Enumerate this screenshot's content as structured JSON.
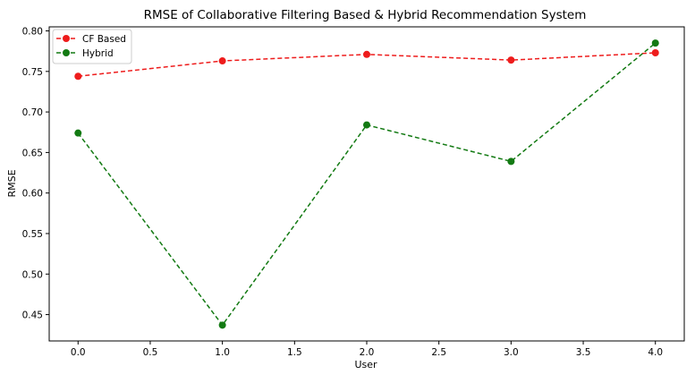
{
  "chart_data": {
    "type": "line",
    "title": "RMSE of Collaborative Filtering Based & Hybrid Recommendation System",
    "xlabel": "User",
    "ylabel": "RMSE",
    "xlim": [
      -0.2,
      4.2
    ],
    "ylim": [
      0.4175,
      0.805
    ],
    "xticks": [
      "0.0",
      "0.5",
      "1.0",
      "1.5",
      "2.0",
      "2.5",
      "3.0",
      "3.5",
      "4.0"
    ],
    "yticks": [
      "0.45",
      "0.50",
      "0.55",
      "0.60",
      "0.65",
      "0.70",
      "0.75",
      "0.80"
    ],
    "x": [
      0,
      1,
      2,
      3,
      4
    ],
    "series": [
      {
        "name": "CF Based",
        "color": "#ee1c1c",
        "values": [
          0.744,
          0.763,
          0.771,
          0.764,
          0.773
        ]
      },
      {
        "name": "Hybrid",
        "color": "#137a13",
        "values": [
          0.674,
          0.437,
          0.684,
          0.639,
          0.785
        ]
      }
    ],
    "grid": false,
    "legend": "top-left",
    "line_style": "dashed",
    "marker": "circle"
  }
}
